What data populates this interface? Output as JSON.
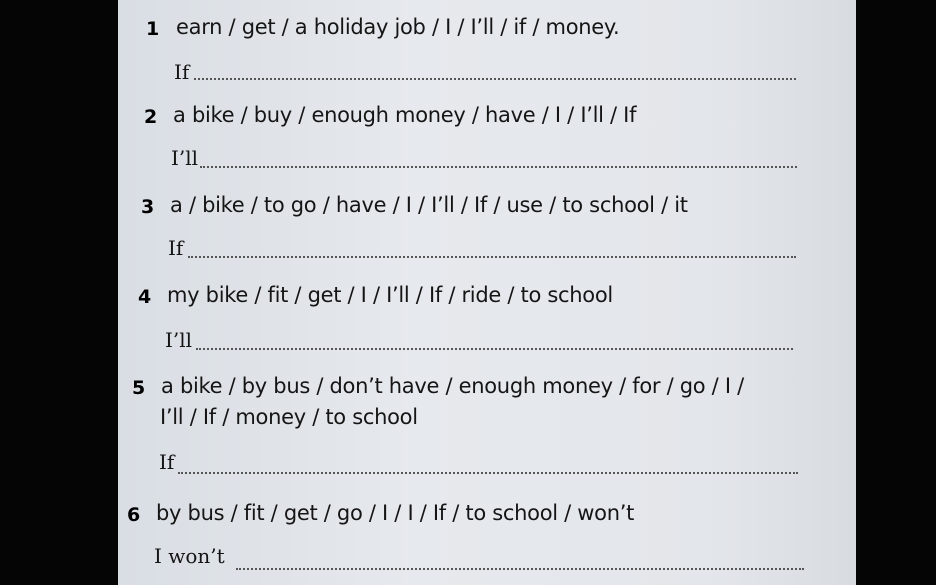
{
  "items": [
    {
      "number": "1",
      "prompt": "earn / get / a holiday job / I / I’ll / if / money.",
      "starter": "If"
    },
    {
      "number": "2",
      "prompt": "a bike / buy / enough money / have / I / I’ll / If",
      "starter": "I’ll"
    },
    {
      "number": "3",
      "prompt": "a / bike / to go / have / I / I’ll / If / use / to school / it",
      "starter": "If"
    },
    {
      "number": "4",
      "prompt": "my bike / fit / get / I / I’ll / If / ride / to school",
      "starter": "I’ll"
    },
    {
      "number": "5",
      "prompt": "a bike / by bus / don’t have / enough money / for / go / I /",
      "prompt_line2": "I’ll / If / money / to school",
      "starter": "If"
    },
    {
      "number": "6",
      "prompt": "by bus / fit / get / go / I / I / If / to school / won’t",
      "starter": "I won’t"
    }
  ]
}
